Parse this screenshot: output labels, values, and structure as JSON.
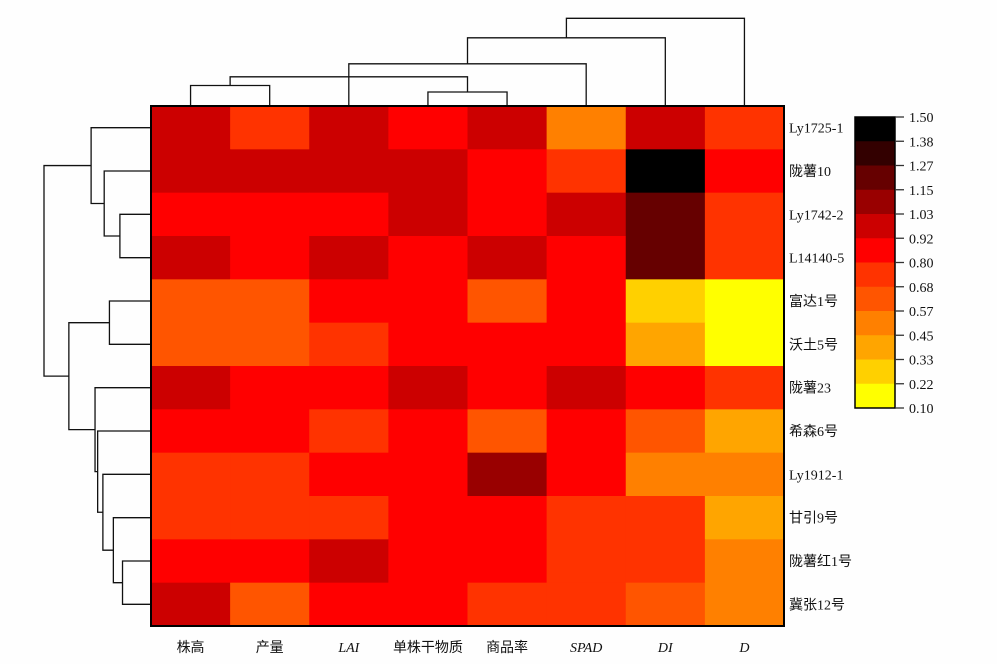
{
  "chart_data": {
    "type": "heatmap",
    "title": "",
    "columns": [
      "株高",
      "产量",
      "LAI",
      "单株干物质",
      "商品率",
      "SPAD",
      "DI",
      "D"
    ],
    "italic_columns": [
      "LAI",
      "SPAD",
      "DI",
      "D"
    ],
    "rows": [
      "Ly1725-1",
      "陇薯10",
      "Ly1742-2",
      "L14140-5",
      "富达1号",
      "沃土5号",
      "陇薯23",
      "希森6号",
      "Ly1912-1",
      "甘引9号",
      "陇薯红1号",
      "冀张12号"
    ],
    "values": [
      [
        0.97,
        0.74,
        0.97,
        0.86,
        0.97,
        0.51,
        0.97,
        0.74
      ],
      [
        0.97,
        0.97,
        0.97,
        0.97,
        0.86,
        0.74,
        1.44,
        0.86
      ],
      [
        0.86,
        0.86,
        0.86,
        0.97,
        0.86,
        0.97,
        1.21,
        0.74
      ],
      [
        0.97,
        0.86,
        0.97,
        0.86,
        0.97,
        0.86,
        1.21,
        0.74
      ],
      [
        0.62,
        0.62,
        0.86,
        0.86,
        0.62,
        0.86,
        0.27,
        0.16
      ],
      [
        0.62,
        0.62,
        0.74,
        0.86,
        0.86,
        0.86,
        0.39,
        0.16
      ],
      [
        0.97,
        0.86,
        0.86,
        0.97,
        0.86,
        0.97,
        0.86,
        0.74
      ],
      [
        0.86,
        0.86,
        0.74,
        0.86,
        0.62,
        0.86,
        0.62,
        0.39
      ],
      [
        0.74,
        0.74,
        0.86,
        0.86,
        1.09,
        0.86,
        0.51,
        0.51
      ],
      [
        0.74,
        0.74,
        0.74,
        0.86,
        0.86,
        0.74,
        0.74,
        0.39
      ],
      [
        0.86,
        0.86,
        0.97,
        0.86,
        0.86,
        0.74,
        0.74,
        0.51
      ],
      [
        0.97,
        0.62,
        0.86,
        0.86,
        0.74,
        0.74,
        0.62,
        0.51
      ]
    ],
    "colorbar": {
      "ticks": [
        "1.50",
        "1.38",
        "1.27",
        "1.15",
        "1.03",
        "0.92",
        "0.80",
        "0.68",
        "0.57",
        "0.45",
        "0.33",
        "0.22",
        "0.10"
      ],
      "range": [
        0.1,
        1.5
      ],
      "colors": [
        "#000000",
        "#330000",
        "#660000",
        "#990000",
        "#CC0000",
        "#FF0000",
        "#FF3300",
        "#FF5500",
        "#FF8000",
        "#FFA500",
        "#FFD000",
        "#FFFF00"
      ],
      "placement": "right"
    },
    "column_dendrogram": [
      {
        "a": 0,
        "b": 1,
        "h": 0.18
      },
      {
        "a": 3,
        "b": 4,
        "h": 0.12
      },
      {
        "a": "m0",
        "b": "m1",
        "h": 0.26
      },
      {
        "a": 2,
        "b": "m2",
        "h": 0.3
      },
      {
        "a": 5,
        "b": "m3",
        "h": 0.38
      },
      {
        "a": 6,
        "b": "m4",
        "h": 0.62
      },
      {
        "a": 7,
        "b": "m5",
        "h": 0.8
      }
    ],
    "row_dendrogram": [
      {
        "a": 2,
        "b": 3,
        "h": 0.23
      },
      {
        "a": 1,
        "b": "m0",
        "h": 0.35
      },
      {
        "a": 0,
        "b": "m1",
        "h": 0.45
      },
      {
        "a": 4,
        "b": 5,
        "h": 0.31
      },
      {
        "a": 10,
        "b": 11,
        "h": 0.21
      },
      {
        "a": 9,
        "b": "m4",
        "h": 0.28
      },
      {
        "a": 8,
        "b": "m5",
        "h": 0.36
      },
      {
        "a": 7,
        "b": "m6",
        "h": 0.4
      },
      {
        "a": 6,
        "b": "m7",
        "h": 0.42
      },
      {
        "a": "m3",
        "b": "m8",
        "h": 0.62
      },
      {
        "a": "m2",
        "b": "m9",
        "h": 0.81
      }
    ]
  }
}
